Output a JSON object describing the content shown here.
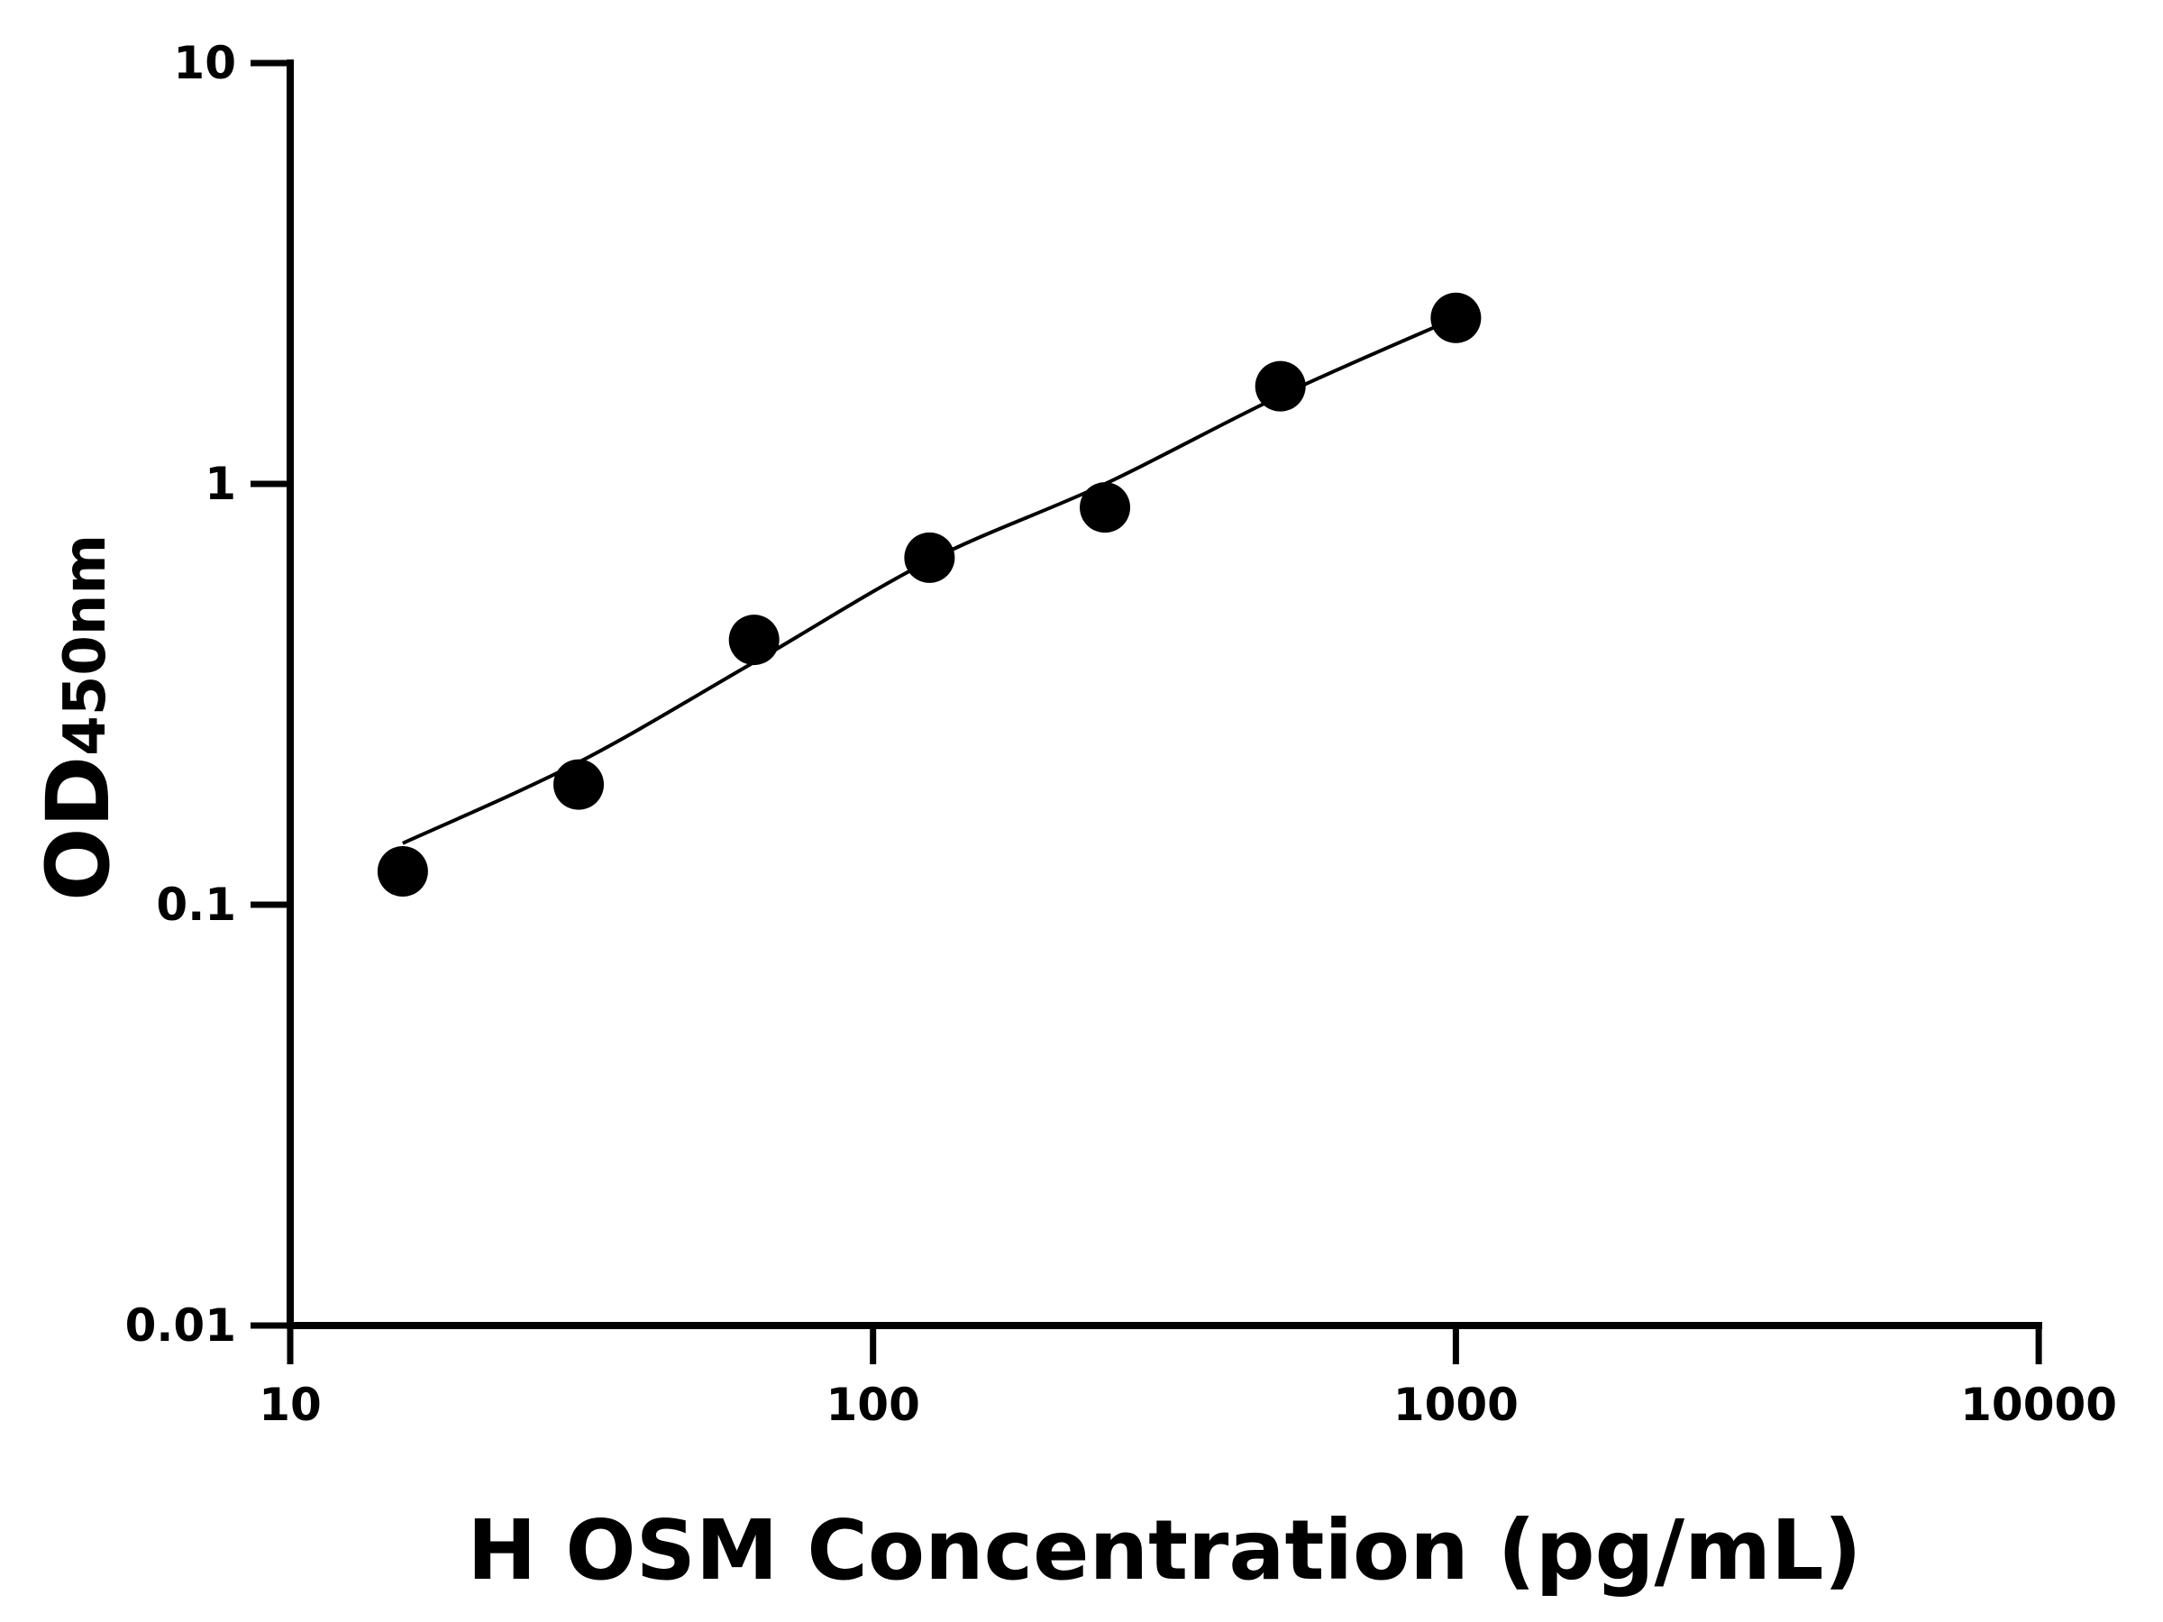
{
  "chart_data": {
    "type": "scatter",
    "title": "",
    "xlabel": "H OSM Concentration (pg/mL)",
    "ylabel": "OD",
    "ylabel_subscript": "450nm",
    "x_scale": "log",
    "y_scale": "log",
    "xlim": [
      10,
      10000
    ],
    "ylim": [
      0.01,
      10
    ],
    "x_ticks": [
      10,
      100,
      1000,
      10000
    ],
    "x_tick_labels": [
      "10",
      "100",
      "1000",
      "10000"
    ],
    "y_ticks": [
      0.01,
      0.1,
      1,
      10
    ],
    "y_tick_labels": [
      "0.01",
      "0.1",
      "1",
      "10"
    ],
    "grid": false,
    "legend": "none",
    "series": [
      {
        "x": [
          15.6,
          31.25,
          62.5,
          125,
          250,
          500,
          1000
        ],
        "y": [
          0.12,
          0.193,
          0.426,
          0.668,
          0.879,
          1.706,
          2.48
        ],
        "marker": "circle",
        "color": "#000000"
      }
    ],
    "fit_curve": {
      "x": [
        15.6,
        31.25,
        62.5,
        125,
        250,
        500,
        1000
      ],
      "y": [
        0.14,
        0.218,
        0.377,
        0.657,
        1.0,
        1.62,
        2.48
      ],
      "color": "#000000"
    }
  }
}
